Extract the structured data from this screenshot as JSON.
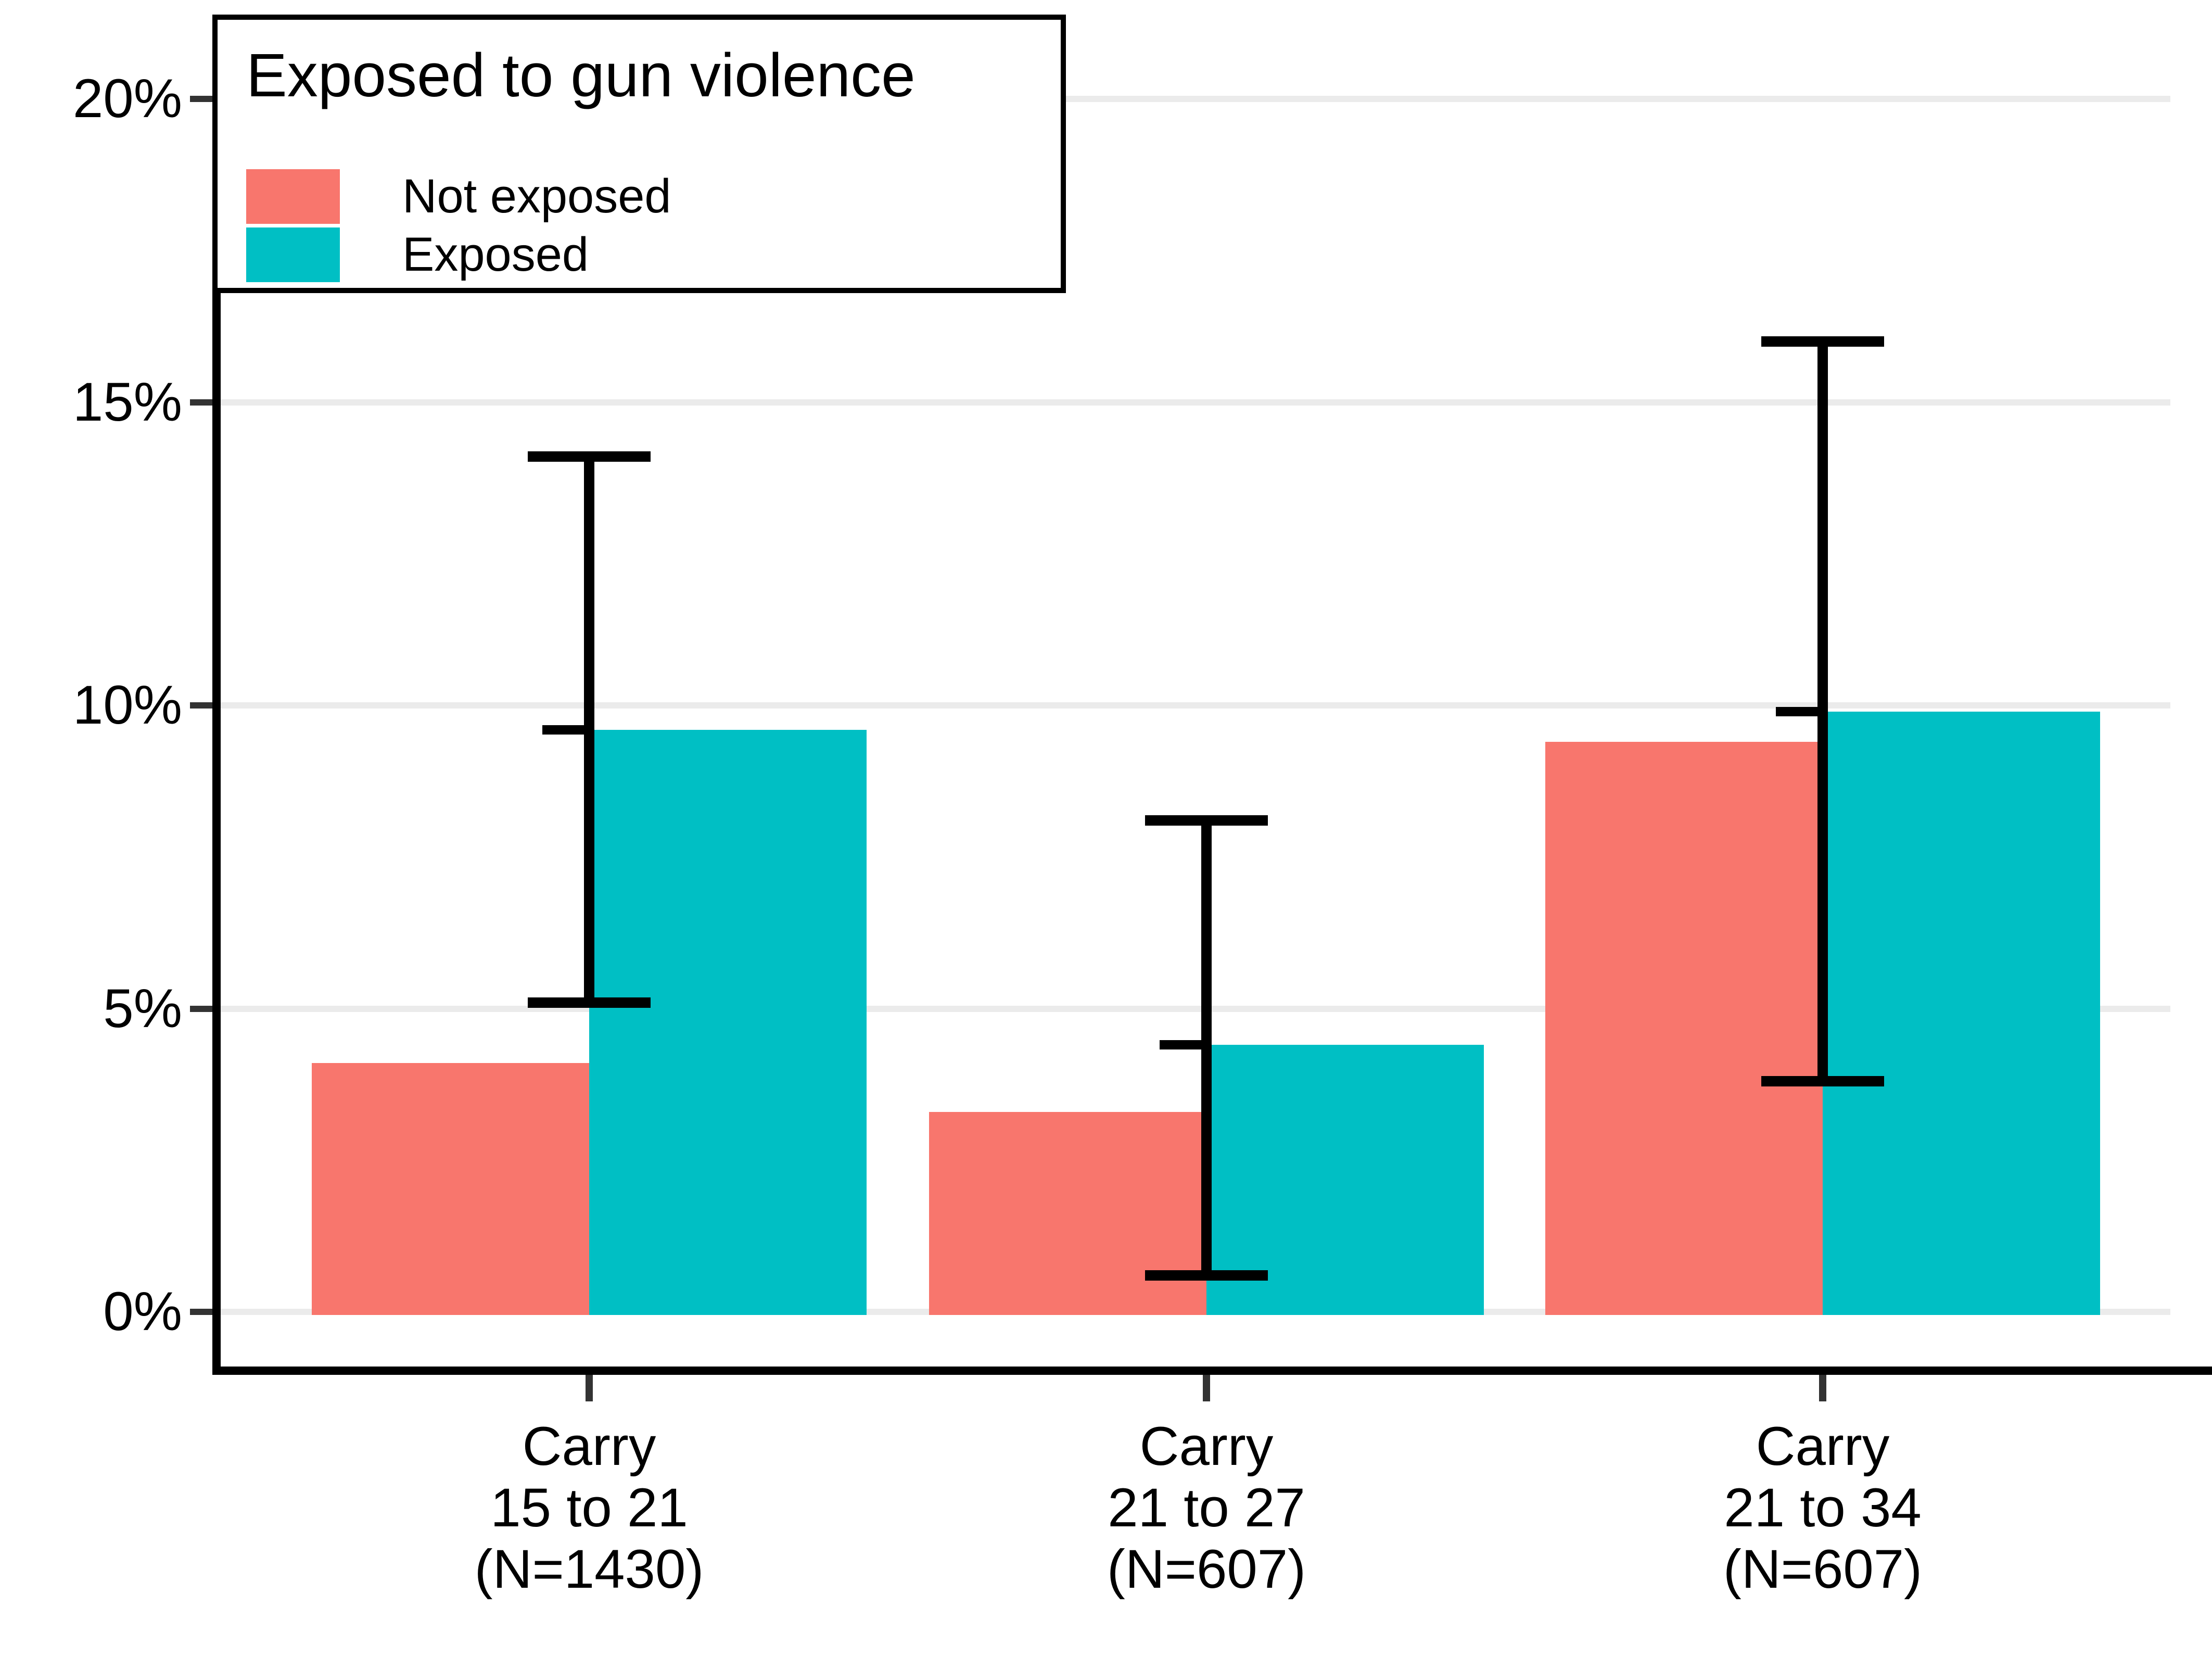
{
  "chart_data": {
    "type": "bar",
    "legend": {
      "title": "Exposed to gun violence",
      "position": "top-left",
      "items": [
        {
          "label": "Not exposed",
          "color": "#F8766D"
        },
        {
          "label": "Exposed",
          "color": "#00BFC4"
        }
      ]
    },
    "categories": [
      {
        "label_lines": [
          "Carry",
          "15 to 21",
          "(N=1430)"
        ]
      },
      {
        "label_lines": [
          "Carry",
          "21 to 27",
          "(N=607)"
        ]
      },
      {
        "label_lines": [
          "Carry",
          "21 to 34",
          "(N=607)"
        ]
      }
    ],
    "series": [
      {
        "name": "Not exposed",
        "color": "#F8766D",
        "values": [
          4.1,
          3.3,
          9.4
        ]
      },
      {
        "name": "Exposed",
        "color": "#00BFC4",
        "values": [
          9.6,
          4.4,
          9.9
        ]
      }
    ],
    "error_bars": {
      "on_series": "Exposed",
      "low": [
        5.1,
        0.6,
        3.8
      ],
      "high": [
        14.1,
        8.1,
        16.0
      ],
      "point": [
        9.6,
        4.4,
        9.9
      ],
      "color": "#000000"
    },
    "y_axis": {
      "ticks": [
        "0%",
        "5%",
        "10%",
        "15%",
        "20%"
      ],
      "tick_values": [
        0,
        5,
        10,
        15,
        20
      ],
      "ylim": [
        0,
        20
      ],
      "grid": true,
      "gridline_color": "#EBEBEB",
      "tick_color": "#333333"
    },
    "axis_color": "#000000"
  }
}
